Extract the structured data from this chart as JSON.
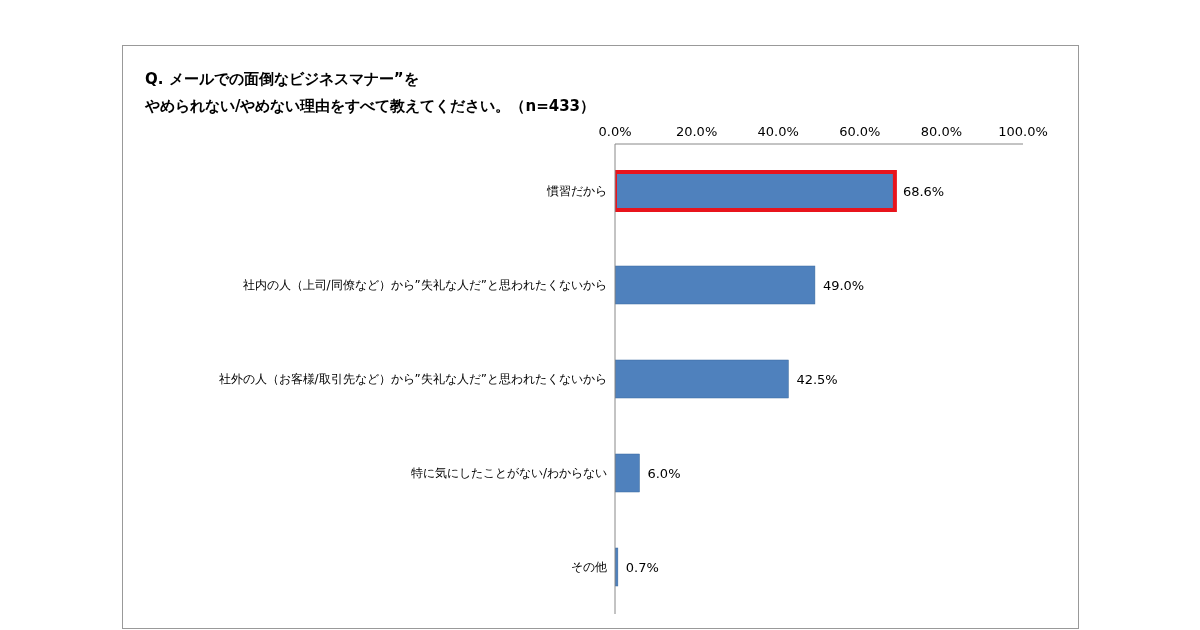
{
  "chart_data": {
    "type": "bar",
    "orientation": "horizontal",
    "title": "Q. メールでの面倒なビジネスマナー”をやめられない/やめない理由をすべて教えてください。（n=433）",
    "categories": [
      "慣習だから",
      "社内の人（上司/同僚など）から”失礼な人だ”と思われたくないから",
      "社外の人（お客様/取引先など）から”失礼な人だ”と思われたくないから",
      "特に気にしたことがない/わからない",
      "その他"
    ],
    "values": [
      68.6,
      49.0,
      42.5,
      6.0,
      0.7
    ],
    "value_labels": [
      "68.6%",
      "49.0%",
      "42.5%",
      "6.0%",
      "0.7%"
    ],
    "color": "#4f81bd",
    "xlim": [
      0,
      100
    ],
    "xticks": [
      {
        "value": 0,
        "label": "0.0%"
      },
      {
        "value": 20,
        "label": "20.0%"
      },
      {
        "value": 40,
        "label": "40.0%"
      },
      {
        "value": 60,
        "label": "60.0%"
      },
      {
        "value": 80,
        "label": "80.0%"
      },
      {
        "value": 100,
        "label": "100.0%"
      }
    ],
    "grid": false,
    "legend": false
  }
}
